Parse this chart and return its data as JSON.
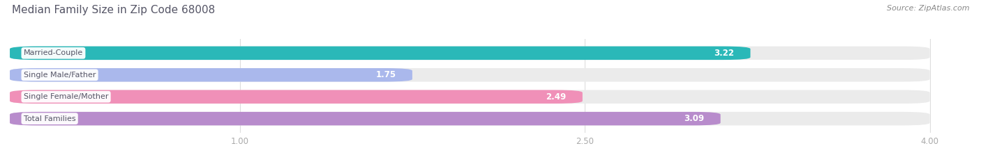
{
  "title": "Median Family Size in Zip Code 68008",
  "source": "Source: ZipAtlas.com",
  "categories": [
    "Married-Couple",
    "Single Male/Father",
    "Single Female/Mother",
    "Total Families"
  ],
  "values": [
    3.22,
    1.75,
    2.49,
    3.09
  ],
  "bar_colors": [
    "#2ab8b8",
    "#aab8ec",
    "#f090b8",
    "#b88ccc"
  ],
  "x_min": 0.0,
  "x_max": 4.0,
  "x_ticks": [
    1.0,
    2.5,
    4.0
  ],
  "x_tick_labels": [
    "1.00",
    "2.50",
    "4.00"
  ],
  "bar_height": 0.62,
  "background_color": "#ffffff",
  "title_color": "#555566",
  "source_color": "#888888",
  "value_label_color": "#ffffff",
  "category_label_color": "#555566",
  "tick_color": "#aaaaaa",
  "grid_color": "#dddddd",
  "track_color": "#ebebeb"
}
